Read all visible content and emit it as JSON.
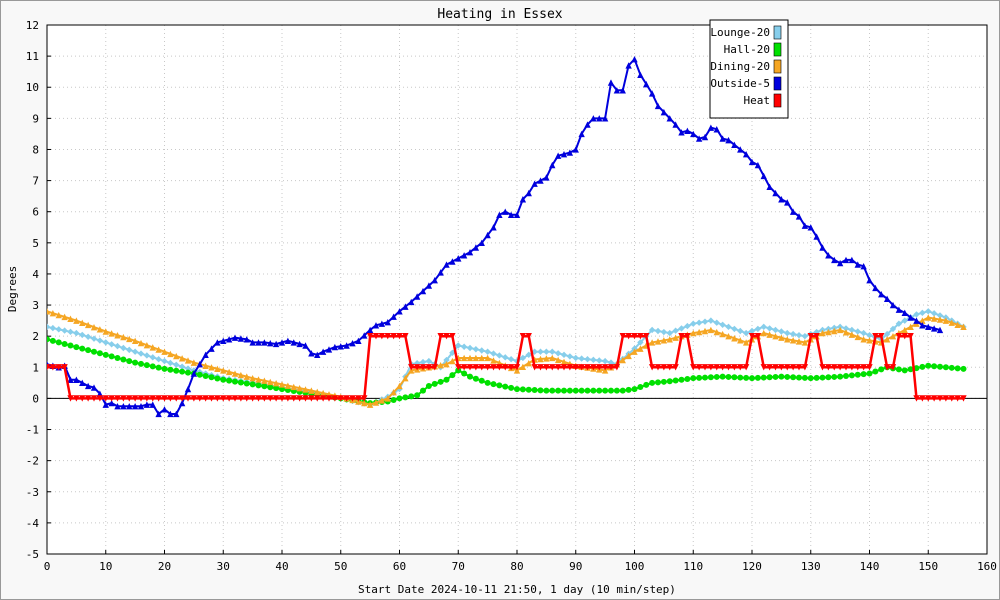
{
  "chart_data": {
    "type": "line",
    "title": "Heating in Essex",
    "xlabel": "Start Date 2024-10-11 21:50, 1 day (10 min/step)",
    "ylabel": "Degrees",
    "xlim": [
      0,
      160
    ],
    "ylim": [
      -5,
      12
    ],
    "x_ticks": [
      0,
      10,
      20,
      30,
      40,
      50,
      60,
      70,
      80,
      90,
      100,
      110,
      120,
      130,
      140,
      150,
      160
    ],
    "y_ticks": [
      -5,
      -4,
      -3,
      -2,
      -1,
      0,
      1,
      2,
      3,
      4,
      5,
      6,
      7,
      8,
      9,
      10,
      11,
      12
    ],
    "grid": true,
    "legend_position": "top-right",
    "series": [
      {
        "name": "Lounge-20",
        "color": "#87ceeb",
        "marker": "diamond",
        "points": [
          [
            0,
            2.3
          ],
          [
            5,
            2.1
          ],
          [
            10,
            1.8
          ],
          [
            15,
            1.5
          ],
          [
            20,
            1.2
          ],
          [
            25,
            0.9
          ],
          [
            30,
            0.65
          ],
          [
            35,
            0.5
          ],
          [
            40,
            0.35
          ],
          [
            45,
            0.2
          ],
          [
            50,
            0.0
          ],
          [
            55,
            -0.2
          ],
          [
            58,
            0.05
          ],
          [
            60,
            0.3
          ],
          [
            62,
            1.1
          ],
          [
            65,
            1.2
          ],
          [
            67,
            1.0
          ],
          [
            70,
            1.7
          ],
          [
            75,
            1.5
          ],
          [
            80,
            1.2
          ],
          [
            83,
            1.5
          ],
          [
            86,
            1.5
          ],
          [
            90,
            1.3
          ],
          [
            95,
            1.2
          ],
          [
            97,
            1.1
          ],
          [
            100,
            1.6
          ],
          [
            103,
            2.2
          ],
          [
            106,
            2.1
          ],
          [
            110,
            2.4
          ],
          [
            113,
            2.5
          ],
          [
            116,
            2.3
          ],
          [
            119,
            2.1
          ],
          [
            122,
            2.3
          ],
          [
            126,
            2.1
          ],
          [
            129,
            2.0
          ],
          [
            132,
            2.2
          ],
          [
            135,
            2.3
          ],
          [
            139,
            2.1
          ],
          [
            142,
            1.9
          ],
          [
            145,
            2.4
          ],
          [
            148,
            2.7
          ],
          [
            150,
            2.8
          ],
          [
            153,
            2.6
          ],
          [
            156,
            2.3
          ]
        ]
      },
      {
        "name": "Hall-20",
        "color": "#00e000",
        "marker": "circle",
        "points": [
          [
            0,
            1.9
          ],
          [
            5,
            1.65
          ],
          [
            10,
            1.4
          ],
          [
            15,
            1.15
          ],
          [
            20,
            0.95
          ],
          [
            25,
            0.8
          ],
          [
            30,
            0.6
          ],
          [
            35,
            0.45
          ],
          [
            40,
            0.3
          ],
          [
            45,
            0.15
          ],
          [
            50,
            0.0
          ],
          [
            55,
            -0.15
          ],
          [
            58,
            -0.1
          ],
          [
            60,
            0.0
          ],
          [
            63,
            0.1
          ],
          [
            65,
            0.4
          ],
          [
            68,
            0.6
          ],
          [
            70,
            0.9
          ],
          [
            72,
            0.7
          ],
          [
            75,
            0.5
          ],
          [
            80,
            0.3
          ],
          [
            85,
            0.25
          ],
          [
            90,
            0.25
          ],
          [
            95,
            0.25
          ],
          [
            98,
            0.25
          ],
          [
            100,
            0.3
          ],
          [
            103,
            0.5
          ],
          [
            106,
            0.55
          ],
          [
            110,
            0.65
          ],
          [
            115,
            0.7
          ],
          [
            120,
            0.65
          ],
          [
            125,
            0.7
          ],
          [
            130,
            0.65
          ],
          [
            135,
            0.7
          ],
          [
            140,
            0.8
          ],
          [
            143,
            1.0
          ],
          [
            146,
            0.9
          ],
          [
            150,
            1.05
          ],
          [
            156,
            0.95
          ]
        ]
      },
      {
        "name": "Dining-20",
        "color": "#f5a623",
        "marker": "triangle",
        "points": [
          [
            0,
            2.8
          ],
          [
            5,
            2.5
          ],
          [
            10,
            2.15
          ],
          [
            15,
            1.85
          ],
          [
            20,
            1.5
          ],
          [
            25,
            1.15
          ],
          [
            30,
            0.9
          ],
          [
            35,
            0.65
          ],
          [
            40,
            0.45
          ],
          [
            45,
            0.25
          ],
          [
            50,
            0.05
          ],
          [
            55,
            -0.2
          ],
          [
            58,
            0.0
          ],
          [
            60,
            0.4
          ],
          [
            62,
            0.9
          ],
          [
            65,
            1.0
          ],
          [
            68,
            1.1
          ],
          [
            70,
            1.3
          ],
          [
            75,
            1.3
          ],
          [
            80,
            0.9
          ],
          [
            83,
            1.25
          ],
          [
            86,
            1.3
          ],
          [
            90,
            1.05
          ],
          [
            95,
            0.9
          ],
          [
            97,
            1.1
          ],
          [
            100,
            1.5
          ],
          [
            103,
            1.8
          ],
          [
            106,
            1.9
          ],
          [
            110,
            2.1
          ],
          [
            113,
            2.2
          ],
          [
            116,
            2.0
          ],
          [
            119,
            1.8
          ],
          [
            122,
            2.1
          ],
          [
            126,
            1.9
          ],
          [
            129,
            1.8
          ],
          [
            132,
            2.1
          ],
          [
            135,
            2.2
          ],
          [
            139,
            1.9
          ],
          [
            142,
            1.8
          ],
          [
            145,
            2.1
          ],
          [
            148,
            2.4
          ],
          [
            150,
            2.6
          ],
          [
            153,
            2.5
          ],
          [
            156,
            2.3
          ]
        ]
      },
      {
        "name": "Outside-5",
        "color": "#0000dd",
        "marker": "triangle",
        "points": [
          [
            0,
            1.1
          ],
          [
            2,
            1.0
          ],
          [
            3,
            1.05
          ],
          [
            4,
            0.6
          ],
          [
            5,
            0.6
          ],
          [
            6,
            0.5
          ],
          [
            7,
            0.4
          ],
          [
            8,
            0.35
          ],
          [
            9,
            0.15
          ],
          [
            10,
            -0.2
          ],
          [
            11,
            -0.15
          ],
          [
            12,
            -0.25
          ],
          [
            14,
            -0.25
          ],
          [
            16,
            -0.25
          ],
          [
            17,
            -0.2
          ],
          [
            18,
            -0.2
          ],
          [
            19,
            -0.5
          ],
          [
            20,
            -0.35
          ],
          [
            21,
            -0.5
          ],
          [
            22,
            -0.5
          ],
          [
            23,
            -0.15
          ],
          [
            24,
            0.3
          ],
          [
            25,
            0.8
          ],
          [
            26,
            1.1
          ],
          [
            27,
            1.4
          ],
          [
            28,
            1.6
          ],
          [
            29,
            1.8
          ],
          [
            30,
            1.85
          ],
          [
            31,
            1.9
          ],
          [
            32,
            1.95
          ],
          [
            34,
            1.9
          ],
          [
            35,
            1.8
          ],
          [
            37,
            1.8
          ],
          [
            39,
            1.75
          ],
          [
            40,
            1.8
          ],
          [
            41,
            1.85
          ],
          [
            42,
            1.8
          ],
          [
            44,
            1.7
          ],
          [
            45,
            1.45
          ],
          [
            46,
            1.4
          ],
          [
            47,
            1.5
          ],
          [
            49,
            1.65
          ],
          [
            51,
            1.7
          ],
          [
            53,
            1.85
          ],
          [
            55,
            2.2
          ],
          [
            56,
            2.35
          ],
          [
            58,
            2.45
          ],
          [
            60,
            2.8
          ],
          [
            62,
            3.1
          ],
          [
            64,
            3.45
          ],
          [
            66,
            3.8
          ],
          [
            68,
            4.3
          ],
          [
            70,
            4.5
          ],
          [
            72,
            4.7
          ],
          [
            74,
            5.0
          ],
          [
            76,
            5.5
          ],
          [
            77,
            5.9
          ],
          [
            78,
            6.0
          ],
          [
            79,
            5.9
          ],
          [
            80,
            5.9
          ],
          [
            81,
            6.4
          ],
          [
            82,
            6.6
          ],
          [
            83,
            6.9
          ],
          [
            85,
            7.1
          ],
          [
            86,
            7.5
          ],
          [
            87,
            7.8
          ],
          [
            89,
            7.9
          ],
          [
            90,
            8.0
          ],
          [
            91,
            8.5
          ],
          [
            92,
            8.8
          ],
          [
            93,
            9.0
          ],
          [
            95,
            9.0
          ],
          [
            96,
            10.15
          ],
          [
            97,
            9.9
          ],
          [
            98,
            9.9
          ],
          [
            99,
            10.7
          ],
          [
            100,
            10.9
          ],
          [
            101,
            10.4
          ],
          [
            102,
            10.1
          ],
          [
            103,
            9.8
          ],
          [
            104,
            9.4
          ],
          [
            105,
            9.2
          ],
          [
            106,
            9.0
          ],
          [
            107,
            8.8
          ],
          [
            108,
            8.55
          ],
          [
            109,
            8.6
          ],
          [
            110,
            8.5
          ],
          [
            111,
            8.35
          ],
          [
            112,
            8.4
          ],
          [
            113,
            8.7
          ],
          [
            114,
            8.65
          ],
          [
            115,
            8.35
          ],
          [
            116,
            8.3
          ],
          [
            117,
            8.15
          ],
          [
            118,
            8.0
          ],
          [
            119,
            7.85
          ],
          [
            120,
            7.6
          ],
          [
            121,
            7.5
          ],
          [
            122,
            7.15
          ],
          [
            123,
            6.8
          ],
          [
            124,
            6.6
          ],
          [
            125,
            6.4
          ],
          [
            126,
            6.3
          ],
          [
            127,
            6.0
          ],
          [
            128,
            5.85
          ],
          [
            129,
            5.55
          ],
          [
            130,
            5.5
          ],
          [
            131,
            5.2
          ],
          [
            132,
            4.85
          ],
          [
            133,
            4.6
          ],
          [
            134,
            4.45
          ],
          [
            135,
            4.35
          ],
          [
            136,
            4.45
          ],
          [
            137,
            4.45
          ],
          [
            138,
            4.3
          ],
          [
            139,
            4.25
          ],
          [
            140,
            3.8
          ],
          [
            141,
            3.55
          ],
          [
            142,
            3.35
          ],
          [
            143,
            3.2
          ],
          [
            144,
            3.0
          ],
          [
            145,
            2.85
          ],
          [
            146,
            2.75
          ],
          [
            147,
            2.6
          ],
          [
            148,
            2.5
          ],
          [
            149,
            2.35
          ],
          [
            150,
            2.3
          ],
          [
            152,
            2.2
          ]
        ]
      },
      {
        "name": "Heat",
        "color": "#ff0000",
        "marker": "triangle-down",
        "points": [
          [
            0,
            1
          ],
          [
            3,
            1
          ],
          [
            4,
            0
          ],
          [
            54,
            0
          ],
          [
            55,
            2
          ],
          [
            61,
            2
          ],
          [
            62,
            1
          ],
          [
            66,
            1
          ],
          [
            67,
            2
          ],
          [
            69,
            2
          ],
          [
            70,
            1
          ],
          [
            80,
            1
          ],
          [
            81,
            2
          ],
          [
            82,
            2
          ],
          [
            83,
            1
          ],
          [
            97,
            1
          ],
          [
            98,
            2
          ],
          [
            102,
            2
          ],
          [
            103,
            1
          ],
          [
            107,
            1
          ],
          [
            108,
            2
          ],
          [
            109,
            2
          ],
          [
            110,
            1
          ],
          [
            119,
            1
          ],
          [
            120,
            2
          ],
          [
            121,
            2
          ],
          [
            122,
            1
          ],
          [
            129,
            1
          ],
          [
            130,
            2
          ],
          [
            131,
            2
          ],
          [
            132,
            1
          ],
          [
            140,
            1
          ],
          [
            141,
            2
          ],
          [
            142,
            2
          ],
          [
            143,
            1
          ],
          [
            144,
            1
          ],
          [
            145,
            2
          ],
          [
            147,
            2
          ],
          [
            148,
            0
          ],
          [
            156,
            0
          ]
        ]
      }
    ]
  }
}
